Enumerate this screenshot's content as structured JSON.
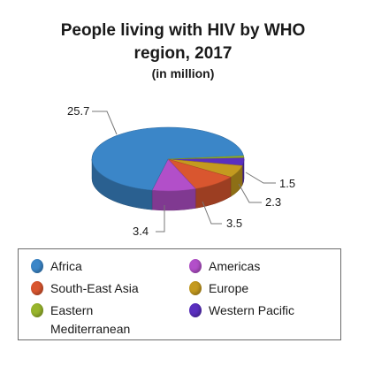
{
  "chart_data": {
    "type": "pie",
    "title": "People living with HIV by WHO region, 2017",
    "subtitle": "(in million)",
    "style": "3d",
    "legend_position": "bottom",
    "slices": [
      {
        "label": "Africa",
        "value": 25.7,
        "color": "#3b86c8"
      },
      {
        "label": "Americas",
        "value": 3.4,
        "color": "#b24fc9"
      },
      {
        "label": "South-East Asia",
        "value": 3.5,
        "color": "#d9562f"
      },
      {
        "label": "Europe",
        "value": 2.3,
        "color": "#c49a1f"
      },
      {
        "label": "Western Pacific",
        "value": 1.5,
        "color": "#5a2fbf"
      },
      {
        "label": "Eastern Mediterranean",
        "value": 0.3,
        "color": "#98b52c"
      }
    ]
  },
  "title_line1": "People living with HIV by WHO",
  "title_line2": "region, 2017",
  "legend": {
    "items": [
      {
        "label": "Africa",
        "color": "#3b86c8"
      },
      {
        "label": "Americas",
        "color": "#b24fc9"
      },
      {
        "label": "South-East Asia",
        "color": "#d9562f"
      },
      {
        "label": "Europe",
        "color": "#c49a1f"
      },
      {
        "label": "Eastern",
        "label2": "Mediterranean",
        "color": "#98b52c"
      },
      {
        "label": "Western Pacific",
        "color": "#5a2fbf"
      }
    ]
  },
  "data_labels": [
    "25.7",
    "3.4",
    "3.5",
    "2.3",
    "1.5"
  ]
}
